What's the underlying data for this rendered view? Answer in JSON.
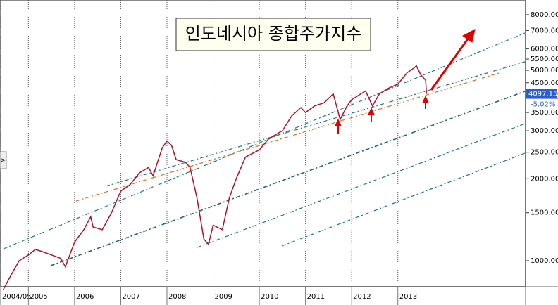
{
  "chart_data": {
    "type": "line",
    "title": "인도네시아 종합주가지수",
    "y_scale": "log",
    "xgrid": true,
    "color": "#b0102a",
    "x": [
      2004.45,
      2004.6,
      2004.8,
      2005.0,
      2005.15,
      2005.3,
      2005.5,
      2005.7,
      2005.8,
      2006.0,
      2006.2,
      2006.35,
      2006.4,
      2006.6,
      2006.8,
      2007.0,
      2007.2,
      2007.4,
      2007.6,
      2007.7,
      2007.9,
      2008.0,
      2008.1,
      2008.2,
      2008.4,
      2008.5,
      2008.65,
      2008.8,
      2008.9,
      2009.0,
      2009.2,
      2009.35,
      2009.5,
      2009.7,
      2009.9,
      2010.0,
      2010.2,
      2010.35,
      2010.5,
      2010.7,
      2010.9,
      2011.0,
      2011.2,
      2011.4,
      2011.6,
      2011.75,
      2011.9,
      2012.0,
      2012.2,
      2012.3,
      2012.45,
      2012.6,
      2012.8,
      2013.0,
      2013.2,
      2013.35,
      2013.4,
      2013.5,
      2013.6,
      2013.62
    ],
    "values": [
      780,
      870,
      1000,
      1050,
      1100,
      1080,
      1050,
      1020,
      950,
      1170,
      1300,
      1450,
      1330,
      1300,
      1500,
      1800,
      1900,
      2100,
      2200,
      2050,
      2600,
      2750,
      2650,
      2350,
      2300,
      2200,
      1700,
      1200,
      1150,
      1350,
      1300,
      1700,
      2000,
      2400,
      2500,
      2550,
      2800,
      2900,
      3000,
      3400,
      3650,
      3500,
      3700,
      3800,
      4100,
      3300,
      3700,
      3900,
      4100,
      4200,
      3700,
      4100,
      4300,
      4450,
      4900,
      5100,
      5200,
      4800,
      4600,
      4097.15
    ],
    "last_value": 4097.15,
    "change_label": "-5.02%",
    "xlim": [
      2004.4,
      2015.75
    ],
    "xticks": [
      {
        "value": 2004.4,
        "label": "2004/05"
      },
      2005,
      2006,
      2007,
      2008,
      2009,
      2010,
      2011,
      2012,
      2013
    ],
    "ylim": [
      817,
      9060
    ],
    "yticks": [
      {
        "value": 1000,
        "label": "1000.00"
      },
      {
        "value": 1500,
        "label": "1500.00"
      },
      {
        "value": 2000,
        "label": "2000.00"
      },
      {
        "value": 2500,
        "label": "2500.00"
      },
      {
        "value": 3000,
        "label": "3000.00"
      },
      {
        "value": 3500,
        "label": "3500.00"
      },
      {
        "value": 4000,
        "label": "4000.00"
      },
      {
        "value": 4500,
        "label": "4500.00"
      },
      {
        "value": 5000,
        "label": "5000.00"
      },
      {
        "value": 5500,
        "label": "5500.00"
      },
      {
        "value": 6000,
        "label": "6000.00"
      },
      {
        "value": 7000,
        "label": "7000.00"
      },
      {
        "value": 8000,
        "label": "8000.00"
      }
    ]
  }
}
